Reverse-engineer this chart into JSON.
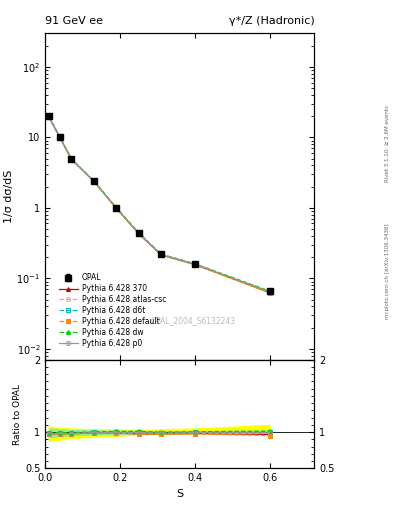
{
  "title_left": "91 GeV ee",
  "title_right": "γ*/Z (Hadronic)",
  "ylabel_main": "1/σ dσ/dS",
  "ylabel_ratio": "Ratio to OPAL",
  "xlabel": "S",
  "right_label_top": "Rivet 3.1.10; ≥ 2.6M events",
  "right_label_bottom": "mcplots.cern.ch [arXiv:1306.3436]",
  "watermark": "OPAL_2004_S6132243",
  "x_data": [
    0.01,
    0.04,
    0.07,
    0.13,
    0.19,
    0.25,
    0.31,
    0.4,
    0.6
  ],
  "opal_y": [
    20.0,
    10.0,
    5.0,
    2.4,
    1.0,
    0.44,
    0.22,
    0.16,
    0.065
  ],
  "opal_yerr": [
    0.5,
    0.3,
    0.15,
    0.07,
    0.03,
    0.013,
    0.007,
    0.005,
    0.002
  ],
  "pythia_370_y": [
    19.5,
    9.8,
    4.9,
    2.38,
    0.99,
    0.43,
    0.215,
    0.157,
    0.063
  ],
  "pythia_atlas_y": [
    19.6,
    9.85,
    4.92,
    2.39,
    0.99,
    0.435,
    0.216,
    0.158,
    0.064
  ],
  "pythia_d6t_y": [
    19.7,
    9.9,
    4.95,
    2.4,
    1.0,
    0.44,
    0.218,
    0.16,
    0.065
  ],
  "pythia_default_y": [
    19.4,
    9.75,
    4.88,
    2.37,
    0.985,
    0.43,
    0.214,
    0.156,
    0.062
  ],
  "pythia_dw_y": [
    19.8,
    9.95,
    4.97,
    2.41,
    1.01,
    0.445,
    0.22,
    0.161,
    0.066
  ],
  "pythia_p0_y": [
    19.5,
    9.82,
    4.91,
    2.385,
    0.992,
    0.438,
    0.217,
    0.159,
    0.0645
  ],
  "band_yellow_low": [
    0.88,
    0.9,
    0.92,
    0.94,
    0.95,
    0.97,
    0.98,
    0.99,
    1.0
  ],
  "band_yellow_high": [
    1.08,
    1.06,
    1.05,
    1.04,
    1.04,
    1.03,
    1.04,
    1.05,
    1.1
  ],
  "band_green_low": [
    0.93,
    0.95,
    0.96,
    0.97,
    0.975,
    0.982,
    0.987,
    0.992,
    0.998
  ],
  "band_green_high": [
    1.05,
    1.04,
    1.03,
    1.025,
    1.02,
    1.018,
    1.016,
    1.015,
    1.02
  ],
  "color_opal": "#000000",
  "color_370": "#cc0000",
  "color_atlas": "#ff99aa",
  "color_d6t": "#00bbbb",
  "color_default": "#ff8c00",
  "color_dw": "#00cc00",
  "color_p0": "#999999",
  "color_band_yellow": "#ffff00",
  "color_band_green": "#90ee90",
  "xlim": [
    0.0,
    0.72
  ],
  "ylim_main": [
    0.007,
    300
  ],
  "ylim_ratio": [
    0.5,
    2.0
  ]
}
